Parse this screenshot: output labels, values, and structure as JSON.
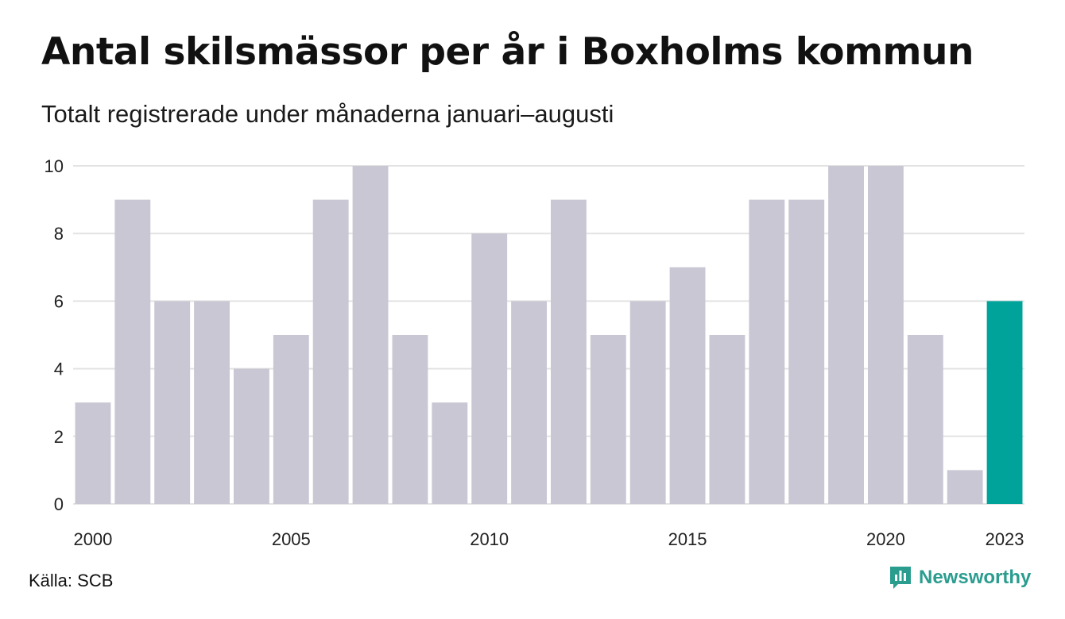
{
  "header": {
    "title": "Antal skilsmässor per år i Boxholms kommun",
    "subtitle": "Totalt registrerade under månaderna januari–augusti"
  },
  "footer": {
    "source": "Källa: SCB",
    "brand": "Newsworthy",
    "brand_icon": "newsworthy-logo-icon"
  },
  "colors": {
    "bar": "#c9c7d4",
    "highlight": "#00a39a",
    "grid": "#e3e3e3",
    "brand": "#2a9d8f"
  },
  "chart_data": {
    "type": "bar",
    "title": "Antal skilsmässor per år i Boxholms kommun",
    "subtitle": "Totalt registrerade under månaderna januari–augusti",
    "categories": [
      "2000",
      "2001",
      "2002",
      "2003",
      "2004",
      "2005",
      "2006",
      "2007",
      "2008",
      "2009",
      "2010",
      "2011",
      "2012",
      "2013",
      "2014",
      "2015",
      "2016",
      "2017",
      "2018",
      "2019",
      "2020",
      "2021",
      "2022",
      "2023"
    ],
    "values": [
      3,
      9,
      6,
      6,
      4,
      5,
      9,
      10,
      5,
      3,
      8,
      6,
      9,
      5,
      6,
      7,
      5,
      9,
      9,
      10,
      10,
      5,
      1,
      6
    ],
    "highlight_category": "2023",
    "x_tick_labels": [
      "2000",
      "2005",
      "2010",
      "2015",
      "2020",
      "2023"
    ],
    "y_ticks": [
      0,
      2,
      4,
      6,
      8,
      10
    ],
    "ylim": [
      0,
      10
    ],
    "xlabel": "",
    "ylabel": "",
    "grid": "horizontal",
    "legend": "none"
  }
}
